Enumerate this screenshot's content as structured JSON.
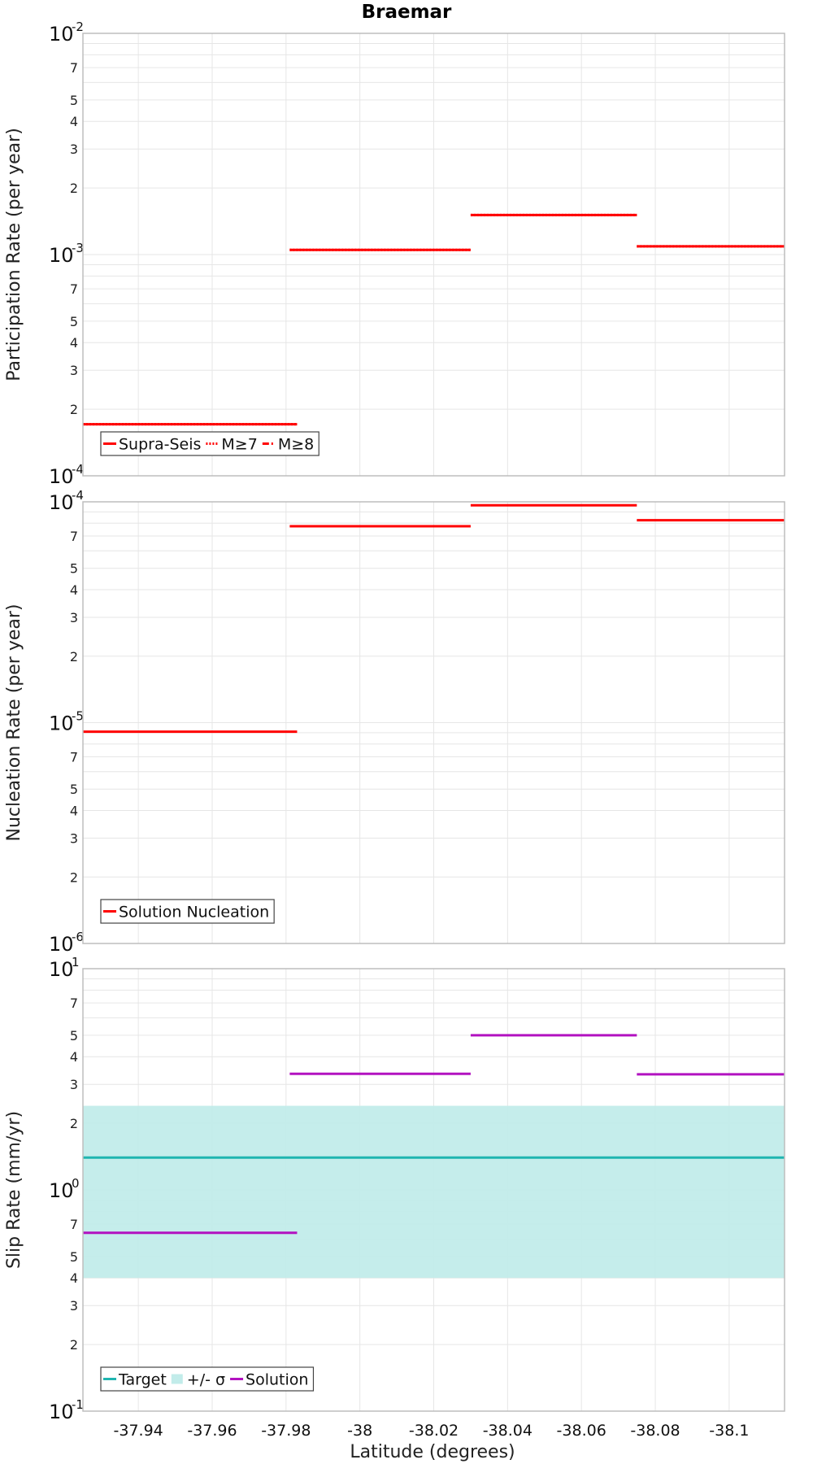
{
  "chart_data": [
    {
      "type": "line",
      "title": "Braemar",
      "xlabel": "",
      "ylabel": "Participation Rate (per year)",
      "yscale": "log",
      "ylim": [
        0.0001,
        0.01
      ],
      "xlim": [
        -37.925,
        -38.115
      ],
      "x_ticks": [
        "-37.94",
        "-37.96",
        "-37.98",
        "-38",
        "-38.02",
        "-38.04",
        "-38.06",
        "-38.08",
        "-38.1"
      ],
      "x_tick_values": [
        -37.94,
        -37.96,
        -37.98,
        -38.0,
        -38.02,
        -38.04,
        -38.06,
        -38.08,
        -38.1
      ],
      "y_major": [
        {
          "base": "10",
          "exp": "-2",
          "value": 0.01
        },
        {
          "base": "10",
          "exp": "-3",
          "value": 0.001
        },
        {
          "base": "10",
          "exp": "-4",
          "value": 0.0001
        }
      ],
      "y_minor_labels": [
        "7",
        "5",
        "4",
        "3",
        "2"
      ],
      "grid": true,
      "legend_position": "bottom-left",
      "series": [
        {
          "name": "Supra-Seis",
          "color": "#ff0000",
          "style": "solid",
          "segments": [
            {
              "x": [
                -37.925,
                -37.983
              ],
              "y": 0.000171
            },
            {
              "x": [
                -37.981,
                -38.03
              ],
              "y": 0.00105
            },
            {
              "x": [
                -38.03,
                -38.075
              ],
              "y": 0.00151
            },
            {
              "x": [
                -38.075,
                -38.115
              ],
              "y": 0.00109
            }
          ]
        },
        {
          "name": "M≥7",
          "color": "#ff0000",
          "style": "dotted",
          "segments": [
            {
              "x": [
                -37.925,
                -37.983
              ],
              "y": 0.000171
            },
            {
              "x": [
                -37.981,
                -38.03
              ],
              "y": 0.00105
            },
            {
              "x": [
                -38.03,
                -38.075
              ],
              "y": 0.00151
            },
            {
              "x": [
                -38.075,
                -38.115
              ],
              "y": 0.00109
            }
          ]
        },
        {
          "name": "M≥8",
          "color": "#ff0000",
          "style": "dashdot",
          "segments": []
        }
      ]
    },
    {
      "type": "line",
      "title": "",
      "xlabel": "",
      "ylabel": "Nucleation Rate (per year)",
      "yscale": "log",
      "ylim": [
        1e-06,
        0.0001
      ],
      "xlim": [
        -37.925,
        -38.115
      ],
      "x_ticks": [
        "-37.94",
        "-37.96",
        "-37.98",
        "-38",
        "-38.02",
        "-38.04",
        "-38.06",
        "-38.08",
        "-38.1"
      ],
      "x_tick_values": [
        -37.94,
        -37.96,
        -37.98,
        -38.0,
        -38.02,
        -38.04,
        -38.06,
        -38.08,
        -38.1
      ],
      "y_major": [
        {
          "base": "10",
          "exp": "-4",
          "value": 0.0001
        },
        {
          "base": "10",
          "exp": "-5",
          "value": 1e-05
        },
        {
          "base": "10",
          "exp": "-6",
          "value": 1e-06
        }
      ],
      "y_minor_labels": [
        "7",
        "5",
        "4",
        "3",
        "2"
      ],
      "grid": true,
      "legend_position": "bottom-left",
      "series": [
        {
          "name": "Solution Nucleation",
          "color": "#ff0000",
          "style": "solid",
          "segments": [
            {
              "x": [
                -37.925,
                -37.983
              ],
              "y": 9.1e-06
            },
            {
              "x": [
                -37.981,
                -38.03
              ],
              "y": 7.75e-05
            },
            {
              "x": [
                -38.03,
                -38.075
              ],
              "y": 9.65e-05
            },
            {
              "x": [
                -38.075,
                -38.115
              ],
              "y": 8.25e-05
            }
          ]
        }
      ]
    },
    {
      "type": "line",
      "title": "",
      "xlabel": "Latitude (degrees)",
      "ylabel": "Slip Rate (mm/yr)",
      "yscale": "log",
      "ylim": [
        0.1,
        10
      ],
      "xlim": [
        -37.925,
        -38.115
      ],
      "x_ticks": [
        "-37.94",
        "-37.96",
        "-37.98",
        "-38",
        "-38.02",
        "-38.04",
        "-38.06",
        "-38.08",
        "-38.1"
      ],
      "x_tick_values": [
        -37.94,
        -37.96,
        -37.98,
        -38.0,
        -38.02,
        -38.04,
        -38.06,
        -38.08,
        -38.1
      ],
      "y_major": [
        {
          "base": "10",
          "exp": "1",
          "value": 10
        },
        {
          "base": "10",
          "exp": "0",
          "value": 1
        },
        {
          "base": "10",
          "exp": "-1",
          "value": 0.1
        }
      ],
      "y_minor_labels": [
        "7",
        "5",
        "4",
        "3",
        "2"
      ],
      "grid": true,
      "legend_position": "bottom-left",
      "series": [
        {
          "name": "Target",
          "color": "#1fb5b0",
          "style": "solid",
          "segments": [
            {
              "x": [
                -37.925,
                -38.115
              ],
              "y": 1.4
            }
          ]
        },
        {
          "name": "+/- σ",
          "color": "#c2ecea",
          "style": "band",
          "band": {
            "x": [
              -37.925,
              -38.115
            ],
            "y": [
              0.4,
              2.4
            ]
          }
        },
        {
          "name": "Solution",
          "color": "#b212c0",
          "style": "solid",
          "segments": [
            {
              "x": [
                -37.925,
                -37.983
              ],
              "y": 0.64
            },
            {
              "x": [
                -37.981,
                -38.03
              ],
              "y": 3.35
            },
            {
              "x": [
                -38.03,
                -38.075
              ],
              "y": 5.0
            },
            {
              "x": [
                -38.075,
                -38.115
              ],
              "y": 3.33
            }
          ]
        }
      ]
    }
  ]
}
